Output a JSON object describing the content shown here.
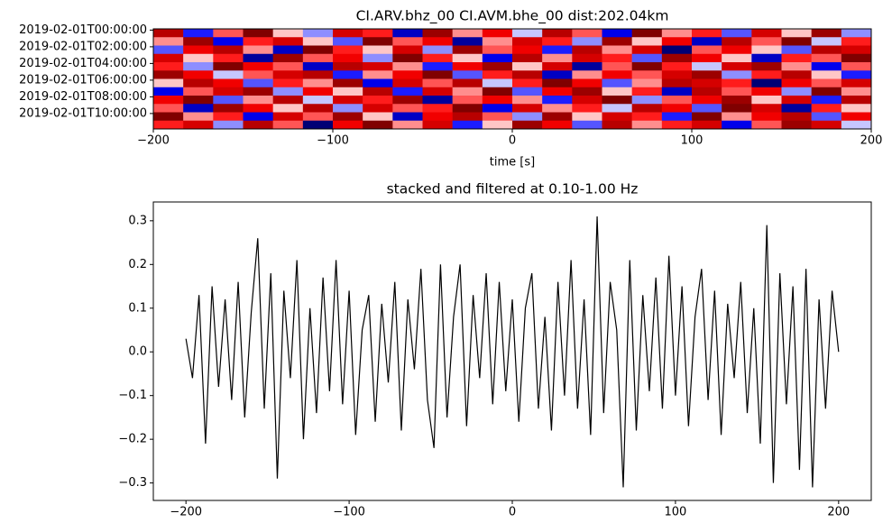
{
  "chart_data": [
    {
      "type": "heatmap",
      "title": "CI.ARV.bhz_00 CI.AVM.bhe_00  dist:202.04km",
      "xlabel": "time [s]",
      "xlim": [
        -200,
        200
      ],
      "xticks": [
        {
          "value": -200,
          "label": "−200"
        },
        {
          "value": -100,
          "label": "−100"
        },
        0,
        100,
        200
      ],
      "y_categories": [
        "2019-02-01T00:00:00",
        null,
        "2019-02-01T02:00:00",
        null,
        "2019-02-01T04:00:00",
        null,
        "2019-02-01T06:00:00",
        null,
        "2019-02-01T08:00:00",
        null,
        "2019-02-01T10:00:00",
        null
      ],
      "z": [
        [
          0.7,
          -0.4,
          0.3,
          0.9,
          0.1,
          -0.2,
          0.6,
          0.4,
          -0.6,
          0.8,
          0.2,
          0.5,
          -0.1,
          0.7,
          0.3,
          -0.5,
          0.9,
          0.2,
          0.4,
          -0.3,
          0.6,
          0.1,
          0.8,
          -0.2
        ],
        [
          0.2,
          0.8,
          -0.5,
          0.4,
          0.6,
          0.1,
          -0.3,
          0.9,
          0.3,
          0.5,
          -0.7,
          0.2,
          0.6,
          0.4,
          -0.2,
          0.8,
          0.1,
          0.5,
          -0.6,
          0.7,
          0.3,
          0.9,
          -0.1,
          0.4
        ],
        [
          -0.3,
          0.5,
          0.7,
          0.2,
          -0.6,
          0.9,
          0.4,
          0.1,
          0.6,
          -0.2,
          0.8,
          0.3,
          0.5,
          -0.4,
          0.7,
          0.2,
          0.6,
          -0.8,
          0.3,
          0.5,
          0.1,
          -0.3,
          0.7,
          0.6
        ],
        [
          0.6,
          0.1,
          0.4,
          -0.7,
          0.8,
          0.3,
          0.5,
          -0.2,
          0.9,
          0.4,
          0.1,
          -0.5,
          0.7,
          0.2,
          0.6,
          0.4,
          -0.3,
          0.8,
          0.5,
          0.1,
          -0.6,
          0.4,
          0.3,
          0.9
        ],
        [
          0.4,
          -0.2,
          0.9,
          0.5,
          0.3,
          -0.6,
          0.7,
          0.6,
          0.2,
          -0.4,
          0.5,
          0.8,
          0.1,
          0.6,
          -0.7,
          0.3,
          0.9,
          0.4,
          -0.1,
          0.6,
          0.8,
          0.2,
          -0.5,
          0.3
        ],
        [
          0.8,
          0.5,
          -0.1,
          0.3,
          0.6,
          0.7,
          -0.4,
          0.2,
          0.5,
          0.9,
          -0.3,
          0.4,
          0.7,
          -0.6,
          0.2,
          0.5,
          0.3,
          0.6,
          0.8,
          -0.2,
          0.4,
          0.7,
          0.1,
          -0.4
        ],
        [
          0.1,
          0.7,
          0.5,
          -0.3,
          0.4,
          0.2,
          0.8,
          -0.5,
          0.6,
          0.3,
          0.7,
          -0.1,
          0.4,
          0.9,
          0.5,
          -0.3,
          0.2,
          0.7,
          0.6,
          0.4,
          -0.8,
          0.5,
          0.3,
          0.6
        ],
        [
          -0.5,
          0.3,
          0.6,
          0.8,
          -0.2,
          0.5,
          0.1,
          0.7,
          -0.4,
          0.6,
          0.2,
          0.9,
          -0.3,
          0.5,
          0.8,
          0.1,
          0.4,
          -0.6,
          0.7,
          0.3,
          0.5,
          -0.2,
          0.9,
          0.2
        ],
        [
          0.5,
          0.9,
          -0.3,
          0.2,
          0.7,
          -0.1,
          0.6,
          0.4,
          0.8,
          -0.7,
          0.3,
          0.5,
          0.2,
          -0.4,
          0.6,
          0.9,
          -0.2,
          0.3,
          0.5,
          0.8,
          0.1,
          0.6,
          -0.4,
          0.7
        ],
        [
          0.3,
          -0.6,
          0.8,
          0.5,
          0.1,
          0.7,
          -0.2,
          0.6,
          0.3,
          0.4,
          0.9,
          -0.5,
          0.6,
          0.2,
          0.4,
          -0.1,
          0.7,
          0.5,
          -0.3,
          0.9,
          0.6,
          -0.7,
          0.4,
          0.1
        ],
        [
          0.9,
          0.2,
          0.4,
          -0.5,
          0.6,
          0.3,
          0.8,
          0.1,
          -0.6,
          0.5,
          0.7,
          0.3,
          -0.2,
          0.8,
          0.1,
          0.6,
          0.4,
          -0.4,
          0.9,
          0.2,
          0.5,
          0.7,
          -0.3,
          0.5
        ],
        [
          0.4,
          0.6,
          -0.2,
          0.7,
          0.3,
          -0.8,
          0.5,
          0.9,
          0.2,
          0.6,
          -0.4,
          0.1,
          0.8,
          0.5,
          -0.3,
          0.7,
          0.2,
          0.4,
          0.6,
          -0.5,
          0.3,
          0.8,
          0.6,
          -0.1
        ]
      ]
    },
    {
      "type": "line",
      "title": "stacked and filtered at 0.10-1.00 Hz",
      "color": "#000000",
      "xlim": [
        -220,
        220
      ],
      "ylim": [
        -0.34,
        0.343
      ],
      "xticks": [
        {
          "value": -200,
          "label": "−200"
        },
        {
          "value": -100,
          "label": "−100"
        },
        0,
        100,
        200
      ],
      "yticks": [
        {
          "value": -0.3,
          "label": "−0.3"
        },
        {
          "value": -0.2,
          "label": "−0.2"
        },
        {
          "value": -0.1,
          "label": "−0.1"
        },
        {
          "value": 0,
          "label": "0.0"
        },
        0.1,
        0.2,
        0.3
      ],
      "x": [
        -200,
        -196,
        -192,
        -188,
        -184,
        -180,
        -176,
        -172,
        -168,
        -164,
        -160,
        -156,
        -152,
        -148,
        -144,
        -140,
        -136,
        -132,
        -128,
        -124,
        -120,
        -116,
        -112,
        -108,
        -104,
        -100,
        -96,
        -92,
        -88,
        -84,
        -80,
        -76,
        -72,
        -68,
        -64,
        -60,
        -56,
        -52,
        -48,
        -44,
        -40,
        -36,
        -32,
        -28,
        -24,
        -20,
        -16,
        -12,
        -8,
        -4,
        0,
        4,
        8,
        12,
        16,
        20,
        24,
        28,
        32,
        36,
        40,
        44,
        48,
        52,
        56,
        60,
        64,
        68,
        72,
        76,
        80,
        84,
        88,
        92,
        96,
        100,
        104,
        108,
        112,
        116,
        120,
        124,
        128,
        132,
        136,
        140,
        144,
        148,
        152,
        156,
        160,
        164,
        168,
        172,
        176,
        180,
        184,
        188,
        192,
        196,
        200
      ],
      "values": [
        0.03,
        -0.06,
        0.13,
        -0.21,
        0.15,
        -0.08,
        0.12,
        -0.11,
        0.16,
        -0.15,
        0.09,
        0.26,
        -0.13,
        0.18,
        -0.29,
        0.14,
        -0.06,
        0.21,
        -0.2,
        0.1,
        -0.14,
        0.17,
        -0.09,
        0.21,
        -0.12,
        0.14,
        -0.19,
        0.05,
        0.13,
        -0.16,
        0.11,
        -0.07,
        0.16,
        -0.18,
        0.12,
        -0.04,
        0.19,
        -0.11,
        -0.22,
        0.2,
        -0.15,
        0.08,
        0.2,
        -0.17,
        0.13,
        -0.06,
        0.18,
        -0.12,
        0.16,
        -0.09,
        0.12,
        -0.16,
        0.1,
        0.18,
        -0.13,
        0.08,
        -0.18,
        0.16,
        -0.1,
        0.21,
        -0.13,
        0.12,
        -0.19,
        0.31,
        -0.14,
        0.16,
        0.05,
        -0.31,
        0.21,
        -0.18,
        0.13,
        -0.09,
        0.17,
        -0.13,
        0.22,
        -0.1,
        0.15,
        -0.17,
        0.08,
        0.19,
        -0.11,
        0.14,
        -0.19,
        0.11,
        -0.06,
        0.16,
        -0.14,
        0.1,
        -0.21,
        0.29,
        -0.3,
        0.18,
        -0.12,
        0.15,
        -0.27,
        0.19,
        -0.31,
        0.12,
        -0.13,
        0.14,
        0
      ]
    }
  ]
}
